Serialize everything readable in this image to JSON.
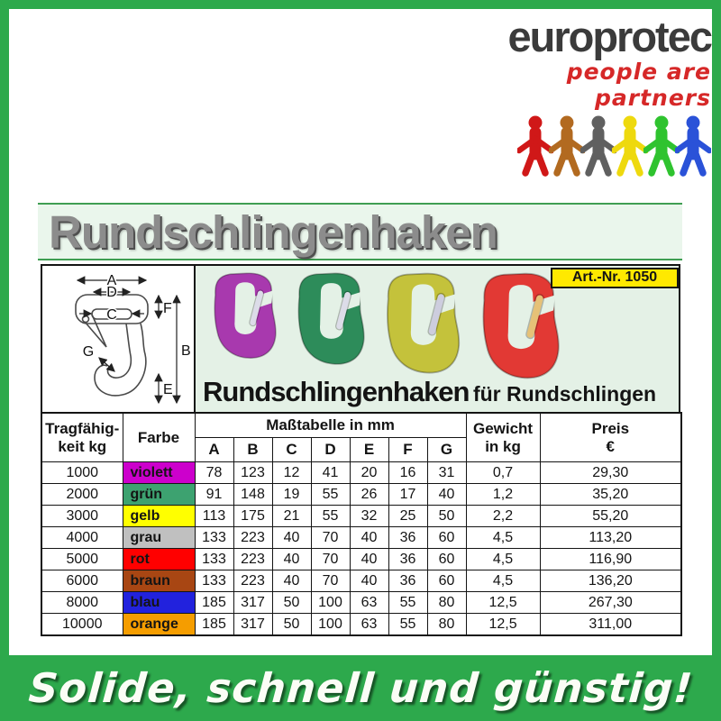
{
  "logo": {
    "brand": "europrotec",
    "tagline": "people are partners",
    "brand_color": "#3b3b3b",
    "tagline_color": "#d62828",
    "figure_colors": [
      "#d01818",
      "#b26a20",
      "#606060",
      "#eed90e",
      "#2fc32f",
      "#2a52d8"
    ]
  },
  "banner": {
    "title": "Rundschlingenhaken"
  },
  "diagram": {
    "labels": [
      "A",
      "D",
      "C",
      "F",
      "B",
      "G",
      "E"
    ]
  },
  "product_panel": {
    "art_nr_label": "Art.-Nr. 1050",
    "caption_main": "Rundschlingenhaken",
    "caption_sub": "für Rundschlingen",
    "panel_bg": "#e4f1e6",
    "hooks": [
      {
        "name": "violett-hook",
        "fill": "#a839ae",
        "latch": "#dcdce8",
        "height": 100
      },
      {
        "name": "gruen-hook",
        "fill": "#2d8c5a",
        "latch": "#dcdce8",
        "height": 107
      },
      {
        "name": "gelb-hook",
        "fill": "#c4c23b",
        "latch": "#cdcdde",
        "height": 117
      },
      {
        "name": "rot-hook",
        "fill": "#e23934",
        "latch": "#e6c177",
        "height": 123
      }
    ]
  },
  "table": {
    "header": {
      "col1_line1": "Tragfähig-",
      "col1_line2": "keit kg",
      "col2": "Farbe",
      "span_header": "Maßtabelle in mm",
      "dims": [
        "A",
        "B",
        "C",
        "D",
        "E",
        "F",
        "G"
      ],
      "weight_line1": "Gewicht",
      "weight_line2": "in kg",
      "price_line1": "Preis",
      "price_line2": "€"
    },
    "rows": [
      {
        "capacity": "1000",
        "color_name": "violett",
        "color_hex": "#cc00cc",
        "dims": [
          "78",
          "123",
          "12",
          "41",
          "20",
          "16",
          "31"
        ],
        "weight": "0,7",
        "price": "29,30"
      },
      {
        "capacity": "2000",
        "color_name": "grün",
        "color_hex": "#3da270",
        "dims": [
          "91",
          "148",
          "19",
          "55",
          "26",
          "17",
          "40"
        ],
        "weight": "1,2",
        "price": "35,20"
      },
      {
        "capacity": "3000",
        "color_name": "gelb",
        "color_hex": "#ffff00",
        "dims": [
          "113",
          "175",
          "21",
          "55",
          "32",
          "25",
          "50"
        ],
        "weight": "2,2",
        "price": "55,20"
      },
      {
        "capacity": "4000",
        "color_name": "grau",
        "color_hex": "#c0c0c0",
        "dims": [
          "133",
          "223",
          "40",
          "70",
          "40",
          "36",
          "60"
        ],
        "weight": "4,5",
        "price": "113,20"
      },
      {
        "capacity": "5000",
        "color_name": "rot",
        "color_hex": "#ff0000",
        "dims": [
          "133",
          "223",
          "40",
          "70",
          "40",
          "36",
          "60"
        ],
        "weight": "4,5",
        "price": "116,90"
      },
      {
        "capacity": "6000",
        "color_name": "braun",
        "color_hex": "#a84613",
        "dims": [
          "133",
          "223",
          "40",
          "70",
          "40",
          "36",
          "60"
        ],
        "weight": "4,5",
        "price": "136,20"
      },
      {
        "capacity": "8000",
        "color_name": "blau",
        "color_hex": "#2222dd",
        "dims": [
          "185",
          "317",
          "50",
          "100",
          "63",
          "55",
          "80"
        ],
        "weight": "12,5",
        "price": "267,30"
      },
      {
        "capacity": "10000",
        "color_name": "orange",
        "color_hex": "#f59d00",
        "dims": [
          "185",
          "317",
          "50",
          "100",
          "63",
          "55",
          "80"
        ],
        "weight": "12,5",
        "price": "311,00"
      }
    ]
  },
  "footer": {
    "slogan": "Solide, schnell und günstig!"
  },
  "theme": {
    "frame_green": "#2da94c",
    "banner_bg": "#eaf6ec",
    "banner_line": "#3f9e52",
    "badge_yellow": "#ffe900",
    "title_gray": "#8c8c8c"
  }
}
